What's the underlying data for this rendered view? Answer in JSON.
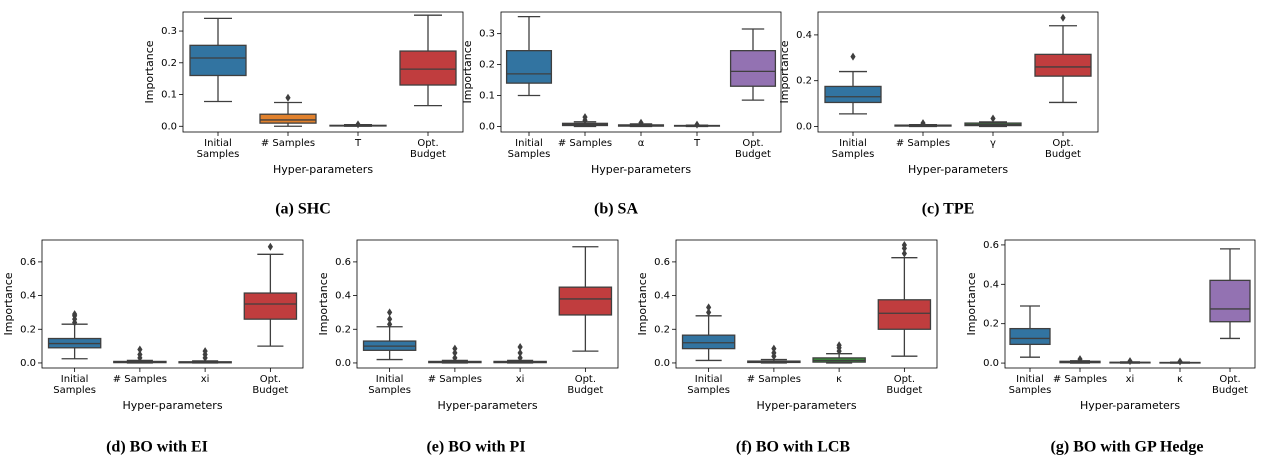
{
  "chart_data": [
    {
      "type": "box",
      "caption": "(a) SHC",
      "xlabel": "Hyper-parameters",
      "ylabel": "Importance",
      "categories": [
        "Initial\nSamples",
        "# Samples",
        "T",
        "Opt.\nBudget"
      ],
      "colors": [
        "#3274a1",
        "#e1812c",
        "#3a923a",
        "#c03d3e"
      ],
      "boxes": [
        {
          "whislo": 0.078,
          "q1": 0.16,
          "med": 0.215,
          "q3": 0.255,
          "whishi": 0.34,
          "fliers": []
        },
        {
          "whislo": 0.0,
          "q1": 0.01,
          "med": 0.02,
          "q3": 0.038,
          "whishi": 0.075,
          "fliers": [
            0.09
          ]
        },
        {
          "whislo": 0.0,
          "q1": 0.001,
          "med": 0.002,
          "q3": 0.003,
          "whishi": 0.005,
          "fliers": [
            0.006
          ]
        },
        {
          "whislo": 0.065,
          "q1": 0.13,
          "med": 0.18,
          "q3": 0.237,
          "whishi": 0.35,
          "fliers": []
        }
      ],
      "ylim": [
        -0.018,
        0.36
      ],
      "yticks": [
        {
          "value": 0,
          "label": "0.0"
        },
        0.1,
        0.2,
        0.3
      ]
    },
    {
      "type": "box",
      "caption": "(b) SA",
      "xlabel": "Hyper-parameters",
      "ylabel": "Importance",
      "categories": [
        "Initial\nSamples",
        "# Samples",
        "α",
        "T",
        "Opt.\nBudget"
      ],
      "colors": [
        "#3274a1",
        "#e1812c",
        "#3a923a",
        "#c03d3e",
        "#9372b2"
      ],
      "boxes": [
        {
          "whislo": 0.1,
          "q1": 0.14,
          "med": 0.17,
          "q3": 0.245,
          "whishi": 0.355,
          "fliers": []
        },
        {
          "whislo": 0.0,
          "q1": 0.003,
          "med": 0.006,
          "q3": 0.01,
          "whishi": 0.015,
          "fliers": [
            0.02,
            0.03
          ]
        },
        {
          "whislo": 0.0,
          "q1": 0.001,
          "med": 0.003,
          "q3": 0.005,
          "whishi": 0.008,
          "fliers": [
            0.012
          ]
        },
        {
          "whislo": 0.0,
          "q1": 0.001,
          "med": 0.002,
          "q3": 0.003,
          "whishi": 0.004,
          "fliers": [
            0.006
          ]
        },
        {
          "whislo": 0.085,
          "q1": 0.13,
          "med": 0.178,
          "q3": 0.245,
          "whishi": 0.315,
          "fliers": []
        }
      ],
      "ylim": [
        -0.018,
        0.37
      ],
      "yticks": [
        {
          "value": 0,
          "label": "0.0"
        },
        0.1,
        0.2,
        0.3
      ]
    },
    {
      "type": "box",
      "caption": "(c) TPE",
      "xlabel": "Hyper-parameters",
      "ylabel": "Importance",
      "categories": [
        "Initial\nSamples",
        "# Samples",
        "γ",
        "Opt.\nBudget"
      ],
      "colors": [
        "#3274a1",
        "#e1812c",
        "#3a923a",
        "#c03d3e"
      ],
      "boxes": [
        {
          "whislo": 0.055,
          "q1": 0.105,
          "med": 0.13,
          "q3": 0.175,
          "whishi": 0.24,
          "fliers": [
            0.305
          ]
        },
        {
          "whislo": 0.0,
          "q1": 0.002,
          "med": 0.004,
          "q3": 0.006,
          "whishi": 0.008,
          "fliers": [
            0.015
          ]
        },
        {
          "whislo": 0.0,
          "q1": 0.004,
          "med": 0.008,
          "q3": 0.015,
          "whishi": 0.02,
          "fliers": [
            0.035
          ]
        },
        {
          "whislo": 0.105,
          "q1": 0.22,
          "med": 0.26,
          "q3": 0.315,
          "whishi": 0.44,
          "fliers": [
            0.475
          ]
        }
      ],
      "ylim": [
        -0.024,
        0.5
      ],
      "yticks": [
        {
          "value": 0,
          "label": "0.0"
        },
        0.2,
        0.4
      ]
    },
    {
      "type": "box",
      "caption": "(d) BO with EI",
      "xlabel": "Hyper-parameters",
      "ylabel": "Importance",
      "categories": [
        "Initial\nSamples",
        "# Samples",
        "xi",
        "Opt.\nBudget"
      ],
      "colors": [
        "#3274a1",
        "#e1812c",
        "#3a923a",
        "#c03d3e"
      ],
      "boxes": [
        {
          "whislo": 0.025,
          "q1": 0.09,
          "med": 0.115,
          "q3": 0.145,
          "whishi": 0.23,
          "fliers": [
            0.24,
            0.26,
            0.28,
            0.29
          ]
        },
        {
          "whislo": 0.0,
          "q1": 0.002,
          "med": 0.005,
          "q3": 0.009,
          "whishi": 0.015,
          "fliers": [
            0.03,
            0.05,
            0.08
          ]
        },
        {
          "whislo": 0.0,
          "q1": 0.001,
          "med": 0.004,
          "q3": 0.007,
          "whishi": 0.012,
          "fliers": [
            0.03,
            0.05,
            0.07
          ]
        },
        {
          "whislo": 0.1,
          "q1": 0.26,
          "med": 0.35,
          "q3": 0.415,
          "whishi": 0.645,
          "fliers": [
            0.69
          ]
        }
      ],
      "ylim": [
        -0.03,
        0.73
      ],
      "yticks": [
        {
          "value": 0,
          "label": "0.0"
        },
        0.2,
        0.4,
        0.6
      ]
    },
    {
      "type": "box",
      "caption": "(e) BO with PI",
      "xlabel": "Hyper-parameters",
      "ylabel": "Importance",
      "categories": [
        "Initial\nSamples",
        "# Samples",
        "xi",
        "Opt.\nBudget"
      ],
      "colors": [
        "#3274a1",
        "#e1812c",
        "#3a923a",
        "#c03d3e"
      ],
      "boxes": [
        {
          "whislo": 0.02,
          "q1": 0.075,
          "med": 0.1,
          "q3": 0.13,
          "whishi": 0.215,
          "fliers": [
            0.23,
            0.26,
            0.3
          ]
        },
        {
          "whislo": 0.0,
          "q1": 0.002,
          "med": 0.005,
          "q3": 0.009,
          "whishi": 0.015,
          "fliers": [
            0.03,
            0.06,
            0.085
          ]
        },
        {
          "whislo": 0.0,
          "q1": 0.002,
          "med": 0.005,
          "q3": 0.009,
          "whishi": 0.015,
          "fliers": [
            0.03,
            0.06,
            0.095
          ]
        },
        {
          "whislo": 0.07,
          "q1": 0.285,
          "med": 0.38,
          "q3": 0.45,
          "whishi": 0.69,
          "fliers": []
        }
      ],
      "ylim": [
        -0.03,
        0.73
      ],
      "yticks": [
        {
          "value": 0,
          "label": "0.0"
        },
        0.2,
        0.4,
        0.6
      ]
    },
    {
      "type": "box",
      "caption": "(f) BO with LCB",
      "xlabel": "Hyper-parameters",
      "ylabel": "Importance",
      "categories": [
        "Initial\nSamples",
        "# Samples",
        "κ",
        "Opt.\nBudget"
      ],
      "colors": [
        "#3274a1",
        "#e1812c",
        "#3a923a",
        "#c03d3e"
      ],
      "boxes": [
        {
          "whislo": 0.015,
          "q1": 0.085,
          "med": 0.12,
          "q3": 0.165,
          "whishi": 0.28,
          "fliers": [
            0.3,
            0.33
          ]
        },
        {
          "whislo": 0.0,
          "q1": 0.003,
          "med": 0.006,
          "q3": 0.011,
          "whishi": 0.02,
          "fliers": [
            0.04,
            0.06,
            0.085
          ]
        },
        {
          "whislo": 0.0,
          "q1": 0.005,
          "med": 0.015,
          "q3": 0.03,
          "whishi": 0.055,
          "fliers": [
            0.07,
            0.09,
            0.105
          ]
        },
        {
          "whislo": 0.04,
          "q1": 0.2,
          "med": 0.295,
          "q3": 0.375,
          "whishi": 0.625,
          "fliers": [
            0.65,
            0.68,
            0.7
          ]
        }
      ],
      "ylim": [
        -0.03,
        0.73
      ],
      "yticks": [
        {
          "value": 0,
          "label": "0.0"
        },
        0.2,
        0.4,
        0.6
      ]
    },
    {
      "type": "box",
      "caption": "(g) BO with GP Hedge",
      "xlabel": "Hyper-parameters",
      "ylabel": "Importance",
      "categories": [
        "Initial\nSamples",
        "# Samples",
        "xi",
        "κ",
        "Opt.\nBudget"
      ],
      "colors": [
        "#3274a1",
        "#e1812c",
        "#3a923a",
        "#c03d3e",
        "#9372b2"
      ],
      "boxes": [
        {
          "whislo": 0.03,
          "q1": 0.095,
          "med": 0.125,
          "q3": 0.175,
          "whishi": 0.29,
          "fliers": []
        },
        {
          "whislo": 0.0,
          "q1": 0.002,
          "med": 0.006,
          "q3": 0.009,
          "whishi": 0.012,
          "fliers": [
            0.02
          ]
        },
        {
          "whislo": 0.0,
          "q1": 0.001,
          "med": 0.003,
          "q3": 0.004,
          "whishi": 0.006,
          "fliers": [
            0.01
          ]
        },
        {
          "whislo": 0.0,
          "q1": 0.001,
          "med": 0.002,
          "q3": 0.003,
          "whishi": 0.005,
          "fliers": [
            0.008
          ]
        },
        {
          "whislo": 0.125,
          "q1": 0.21,
          "med": 0.275,
          "q3": 0.42,
          "whishi": 0.58,
          "fliers": []
        }
      ],
      "ylim": [
        -0.025,
        0.625
      ],
      "yticks": [
        {
          "value": 0,
          "label": "0.0"
        },
        0.2,
        0.4,
        0.6
      ]
    }
  ]
}
